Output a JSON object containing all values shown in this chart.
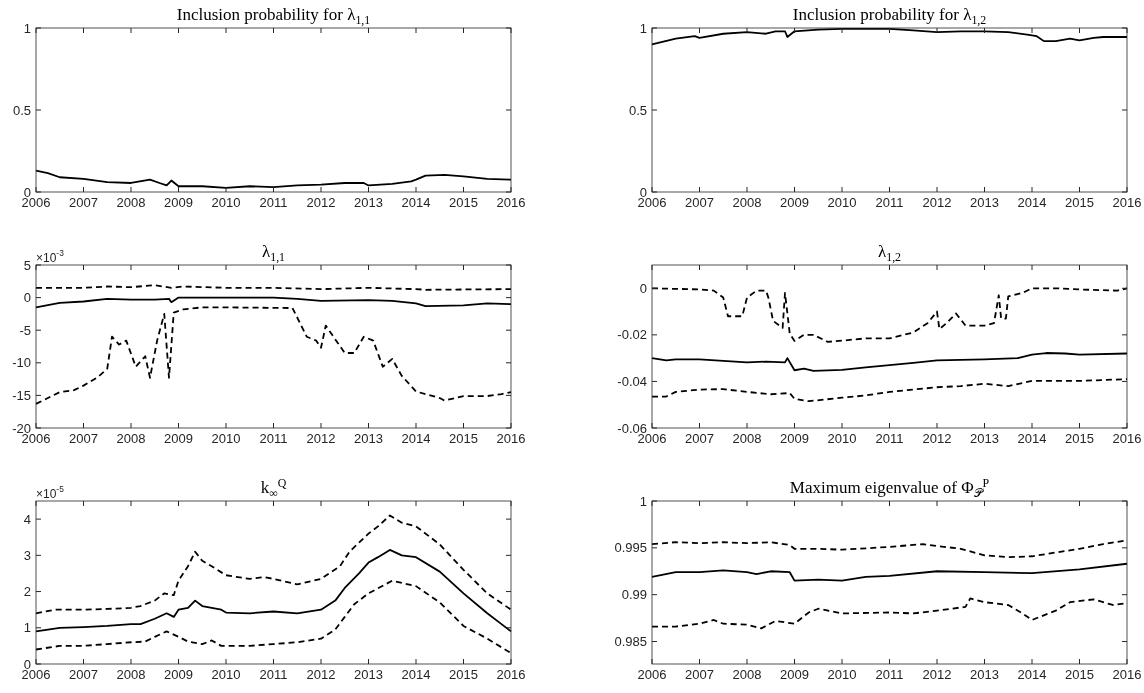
{
  "chart_data": [
    {
      "type": "line",
      "title": "Inclusion probability for λ$_{1,1}$",
      "xlim": [
        2006,
        2016
      ],
      "xticks": [
        2006,
        2007,
        2008,
        2009,
        2010,
        2011,
        2012,
        2013,
        2014,
        2015,
        2016
      ],
      "ylim": [
        0,
        1
      ],
      "yticks": [
        0,
        0.5,
        1
      ],
      "grid": false,
      "series": [
        {
          "color": "#000000",
          "line_style": "solid",
          "x": [
            2006,
            2006.25,
            2006.5,
            2007,
            2007.5,
            2008,
            2008.4,
            2008.6,
            2008.75,
            2008.85,
            2009,
            2009.5,
            2010,
            2010.5,
            2011,
            2011.5,
            2012,
            2012.5,
            2012.9,
            2013,
            2013.5,
            2013.9,
            2014,
            2014.2,
            2014.6,
            2015,
            2015.5,
            2016
          ],
          "values": [
            0.13,
            0.115,
            0.09,
            0.08,
            0.06,
            0.055,
            0.075,
            0.055,
            0.04,
            0.07,
            0.035,
            0.035,
            0.025,
            0.035,
            0.03,
            0.04,
            0.045,
            0.055,
            0.055,
            0.04,
            0.05,
            0.065,
            0.075,
            0.1,
            0.105,
            0.095,
            0.08,
            0.075
          ]
        }
      ]
    },
    {
      "type": "line",
      "title": "Inclusion probability for λ$_{1,2}$",
      "xlim": [
        2006,
        2016
      ],
      "xticks": [
        2006,
        2007,
        2008,
        2009,
        2010,
        2011,
        2012,
        2013,
        2014,
        2015,
        2016
      ],
      "ylim": [
        0,
        1
      ],
      "yticks": [
        0,
        0.5,
        1
      ],
      "grid": false,
      "series": [
        {
          "color": "#000000",
          "line_style": "solid",
          "x": [
            2006,
            2006.5,
            2006.9,
            2007,
            2007.5,
            2008,
            2008.4,
            2008.6,
            2008.8,
            2008.85,
            2009,
            2009.5,
            2010,
            2011,
            2011.5,
            2012,
            2012.5,
            2013,
            2013.5,
            2013.9,
            2014.1,
            2014.25,
            2014.5,
            2014.8,
            2015,
            2015.3,
            2015.5,
            2016
          ],
          "values": [
            0.9,
            0.935,
            0.95,
            0.94,
            0.965,
            0.975,
            0.965,
            0.98,
            0.98,
            0.945,
            0.98,
            0.99,
            0.995,
            0.995,
            0.985,
            0.975,
            0.98,
            0.98,
            0.975,
            0.96,
            0.95,
            0.92,
            0.92,
            0.935,
            0.925,
            0.94,
            0.945,
            0.945
          ]
        }
      ]
    },
    {
      "type": "line",
      "title": "λ$_{1,1}$",
      "annotations": [
        "×10$^{-3}$"
      ],
      "xlim": [
        2006,
        2016
      ],
      "xticks": [
        2006,
        2007,
        2008,
        2009,
        2010,
        2011,
        2012,
        2013,
        2014,
        2015,
        2016
      ],
      "ylim": [
        -20,
        5
      ],
      "yticks": [
        -20,
        -15,
        -10,
        -5,
        0,
        5
      ],
      "grid": false,
      "series": [
        {
          "color": "#000000",
          "line_style": "dashed",
          "x": [
            2006,
            2007,
            2007.5,
            2008,
            2008.5,
            2008.85,
            2009.1,
            2010,
            2011,
            2012,
            2013,
            2014,
            2014.2,
            2016
          ],
          "values": [
            1.5,
            1.5,
            1.7,
            1.6,
            1.9,
            1.5,
            1.7,
            1.5,
            1.5,
            1.3,
            1.5,
            1.3,
            1.2,
            1.3
          ]
        },
        {
          "color": "#000000",
          "line_style": "solid",
          "x": [
            2006,
            2006.5,
            2007,
            2007.5,
            2008,
            2008.5,
            2008.8,
            2008.85,
            2009,
            2010,
            2011,
            2011.5,
            2012,
            2013,
            2013.5,
            2014,
            2014.2,
            2015,
            2015.5,
            2016
          ],
          "values": [
            -1.5,
            -0.8,
            -0.6,
            -0.2,
            -0.3,
            -0.3,
            -0.2,
            -0.7,
            0,
            0,
            0,
            -0.2,
            -0.5,
            -0.4,
            -0.5,
            -0.9,
            -1.3,
            -1.2,
            -0.9,
            -1
          ]
        },
        {
          "color": "#000000",
          "line_style": "dashed",
          "x": [
            2006,
            2006.5,
            2006.8,
            2007,
            2007.3,
            2007.5,
            2007.6,
            2007.75,
            2007.9,
            2008.1,
            2008.3,
            2008.4,
            2008.55,
            2008.7,
            2008.8,
            2008.9,
            2009.1,
            2009.5,
            2010,
            2011.4,
            2011.7,
            2011.9,
            2012,
            2012.1,
            2012.5,
            2012.7,
            2012.9,
            2013.1,
            2013.3,
            2013.5,
            2013.7,
            2014,
            2014.5,
            2014.6,
            2015,
            2015.5,
            2015.8,
            2016
          ],
          "values": [
            -16.3,
            -14.5,
            -14.2,
            -13.5,
            -12.2,
            -10.9,
            -6,
            -7.2,
            -6.6,
            -10.6,
            -9,
            -12.3,
            -6.6,
            -2.5,
            -12.3,
            -2.3,
            -1.8,
            -1.5,
            -1.5,
            -1.6,
            -6,
            -6.6,
            -7.7,
            -4.3,
            -8.5,
            -8.5,
            -6,
            -6.6,
            -10.6,
            -9.4,
            -12,
            -14.4,
            -15.4,
            -15.8,
            -15.1,
            -15.1,
            -14.8,
            -14.5
          ]
        }
      ]
    },
    {
      "type": "line",
      "title": "λ$_{1,2}$",
      "xlim": [
        2006,
        2016
      ],
      "xticks": [
        2006,
        2007,
        2008,
        2009,
        2010,
        2011,
        2012,
        2013,
        2014,
        2015,
        2016
      ],
      "ylim": [
        -0.06,
        0.01
      ],
      "yticks": [
        -0.06,
        -0.04,
        -0.02,
        0
      ],
      "grid": false,
      "series": [
        {
          "color": "#000000",
          "line_style": "dashed",
          "x": [
            2006,
            2007,
            2007.3,
            2007.5,
            2007.6,
            2007.9,
            2008,
            2008.2,
            2008.4,
            2008.45,
            2008.55,
            2008.75,
            2008.8,
            2008.9,
            2009,
            2009.2,
            2009.4,
            2009.7,
            2010,
            2010.5,
            2011,
            2011.5,
            2011.8,
            2012,
            2012.05,
            2012.2,
            2012.4,
            2012.6,
            2013,
            2013.2,
            2013.3,
            2013.35,
            2013.45,
            2013.5,
            2013.8,
            2014,
            2014.5,
            2015,
            2015.8,
            2016
          ],
          "values": [
            0,
            -0.0005,
            -0.001,
            -0.004,
            -0.012,
            -0.012,
            -0.004,
            -0.001,
            -0.001,
            -0.004,
            -0.014,
            -0.017,
            -0.002,
            -0.0195,
            -0.0226,
            -0.02,
            -0.02,
            -0.023,
            -0.0225,
            -0.0215,
            -0.0215,
            -0.019,
            -0.015,
            -0.01,
            -0.0175,
            -0.015,
            -0.0108,
            -0.016,
            -0.016,
            -0.015,
            -0.003,
            -0.013,
            -0.013,
            -0.0035,
            -0.002,
            0,
            0,
            -0.0005,
            -0.001,
            0
          ]
        },
        {
          "color": "#000000",
          "line_style": "solid",
          "x": [
            2006,
            2006.3,
            2006.5,
            2007,
            2008,
            2008.4,
            2008.8,
            2008.85,
            2009,
            2009.2,
            2009.4,
            2010,
            2010.5,
            2011,
            2011.5,
            2012,
            2013,
            2013.7,
            2014,
            2014.3,
            2014.7,
            2015,
            2016
          ],
          "values": [
            -0.03,
            -0.031,
            -0.0305,
            -0.0305,
            -0.0318,
            -0.0315,
            -0.0318,
            -0.03,
            -0.0352,
            -0.0345,
            -0.0355,
            -0.035,
            -0.034,
            -0.033,
            -0.032,
            -0.031,
            -0.0305,
            -0.03,
            -0.0285,
            -0.0278,
            -0.028,
            -0.0285,
            -0.028
          ]
        },
        {
          "color": "#000000",
          "line_style": "dashed",
          "x": [
            2006,
            2006.3,
            2006.5,
            2007,
            2007.5,
            2008,
            2008.5,
            2008.9,
            2009,
            2009.3,
            2010,
            2010.5,
            2011,
            2012,
            2012.5,
            2013,
            2013.5,
            2014,
            2015,
            2016
          ],
          "values": [
            -0.0465,
            -0.0465,
            -0.0445,
            -0.0435,
            -0.0433,
            -0.0445,
            -0.0455,
            -0.045,
            -0.0475,
            -0.0485,
            -0.047,
            -0.046,
            -0.0445,
            -0.0425,
            -0.042,
            -0.041,
            -0.042,
            -0.0398,
            -0.0398,
            -0.039
          ]
        }
      ]
    },
    {
      "type": "line",
      "title": "k$_{∞}$$^{Q}$",
      "annotations": [
        "×10$^{-5}$"
      ],
      "xlim": [
        2006,
        2016
      ],
      "xticks": [
        2006,
        2007,
        2008,
        2009,
        2010,
        2011,
        2012,
        2013,
        2014,
        2015,
        2016
      ],
      "ylim": [
        0,
        4.5
      ],
      "yticks": [
        0,
        1,
        2,
        3,
        4
      ],
      "grid": false,
      "series": [
        {
          "color": "#000000",
          "line_style": "dashed",
          "x": [
            2006,
            2006.4,
            2007,
            2007.5,
            2008,
            2008.2,
            2008.5,
            2008.7,
            2008.9,
            2009,
            2009.2,
            2009.35,
            2009.5,
            2009.7,
            2010,
            2010.5,
            2010.8,
            2011,
            2011.5,
            2012,
            2012.4,
            2012.6,
            2013,
            2013.2,
            2013.45,
            2013.7,
            2014,
            2014.5,
            2015,
            2015.5,
            2016
          ],
          "values": [
            1.4,
            1.5,
            1.5,
            1.52,
            1.55,
            1.6,
            1.75,
            1.95,
            1.9,
            2.3,
            2.7,
            3.1,
            2.85,
            2.7,
            2.45,
            2.35,
            2.4,
            2.35,
            2.2,
            2.35,
            2.7,
            3.1,
            3.6,
            3.8,
            4.1,
            3.9,
            3.8,
            3.3,
            2.6,
            1.95,
            1.5
          ]
        },
        {
          "color": "#000000",
          "line_style": "solid",
          "x": [
            2006,
            2006.5,
            2007,
            2007.5,
            2008,
            2008.2,
            2008.5,
            2008.75,
            2008.9,
            2009,
            2009.2,
            2009.35,
            2009.5,
            2009.9,
            2010,
            2010.5,
            2011,
            2011.5,
            2012,
            2012.3,
            2012.5,
            2012.8,
            2013,
            2013.2,
            2013.45,
            2013.7,
            2014,
            2014.5,
            2015,
            2015.5,
            2015.8,
            2016
          ],
          "values": [
            0.9,
            1,
            1.02,
            1.05,
            1.1,
            1.1,
            1.25,
            1.4,
            1.3,
            1.5,
            1.55,
            1.75,
            1.6,
            1.5,
            1.42,
            1.4,
            1.45,
            1.4,
            1.5,
            1.75,
            2.1,
            2.5,
            2.8,
            2.95,
            3.15,
            3,
            2.95,
            2.55,
            1.95,
            1.4,
            1.1,
            0.9
          ]
        },
        {
          "color": "#000000",
          "line_style": "dashed",
          "x": [
            2006,
            2006.5,
            2007,
            2007.5,
            2008,
            2008.3,
            2008.5,
            2008.75,
            2009,
            2009.2,
            2009.5,
            2009.7,
            2009.9,
            2010.5,
            2011,
            2011.5,
            2012,
            2012.3,
            2012.5,
            2012.7,
            2013,
            2013.5,
            2014,
            2014.5,
            2015,
            2015.5,
            2016
          ],
          "values": [
            0.4,
            0.5,
            0.5,
            0.55,
            0.6,
            0.62,
            0.75,
            0.9,
            0.75,
            0.62,
            0.55,
            0.65,
            0.5,
            0.5,
            0.55,
            0.6,
            0.7,
            0.95,
            1.3,
            1.65,
            1.95,
            2.3,
            2.15,
            1.7,
            1.05,
            0.7,
            0.3
          ]
        }
      ]
    },
    {
      "type": "line",
      "title": "Maximum eigenvalue of Φ$_{𝒫}$$^{P}$",
      "xlim": [
        2006,
        2016
      ],
      "xticks": [
        2006,
        2007,
        2008,
        2009,
        2010,
        2011,
        2012,
        2013,
        2014,
        2015,
        2016
      ],
      "ylim": [
        0.9826,
        1
      ],
      "yticks": [
        0.985,
        0.99,
        0.995,
        1
      ],
      "grid": false,
      "series": [
        {
          "color": "#000000",
          "line_style": "dashed",
          "x": [
            2006,
            2006.5,
            2007,
            2007.5,
            2008,
            2008.5,
            2008.9,
            2009,
            2009.5,
            2010,
            2011,
            2011.7,
            2012,
            2012.5,
            2013,
            2013.5,
            2014,
            2014.5,
            2015,
            2015.5,
            2016
          ],
          "values": [
            0.9954,
            0.9956,
            0.9955,
            0.9956,
            0.9955,
            0.9956,
            0.9953,
            0.9949,
            0.9949,
            0.9948,
            0.9951,
            0.9954,
            0.9952,
            0.9949,
            0.9942,
            0.994,
            0.9941,
            0.9945,
            0.9949,
            0.9954,
            0.9958
          ]
        },
        {
          "color": "#000000",
          "line_style": "solid",
          "x": [
            2006,
            2006.5,
            2007,
            2007.5,
            2008,
            2008.2,
            2008.5,
            2008.9,
            2009,
            2009.5,
            2010,
            2010.5,
            2011,
            2012,
            2013,
            2014,
            2015,
            2016
          ],
          "values": [
            0.9919,
            0.9924,
            0.9924,
            0.9926,
            0.9924,
            0.9922,
            0.9925,
            0.9924,
            0.9915,
            0.9916,
            0.9915,
            0.9919,
            0.992,
            0.9925,
            0.9924,
            0.9923,
            0.9927,
            0.9933
          ]
        },
        {
          "color": "#000000",
          "line_style": "dashed",
          "x": [
            2006,
            2006.5,
            2007,
            2007.3,
            2007.5,
            2008,
            2008.3,
            2008.6,
            2009,
            2009.3,
            2009.5,
            2010,
            2011,
            2011.5,
            2012,
            2012.6,
            2012.7,
            2013,
            2013.5,
            2013.8,
            2014,
            2014.5,
            2014.8,
            2015.3,
            2015.7,
            2016
          ],
          "values": [
            0.9866,
            0.9866,
            0.9869,
            0.9873,
            0.9869,
            0.9868,
            0.9864,
            0.9872,
            0.9869,
            0.9881,
            0.9885,
            0.988,
            0.9881,
            0.988,
            0.9883,
            0.9887,
            0.9896,
            0.9892,
            0.9889,
            0.988,
            0.9873,
            0.9883,
            0.9892,
            0.9895,
            0.9889,
            0.9891
          ]
        }
      ]
    }
  ]
}
